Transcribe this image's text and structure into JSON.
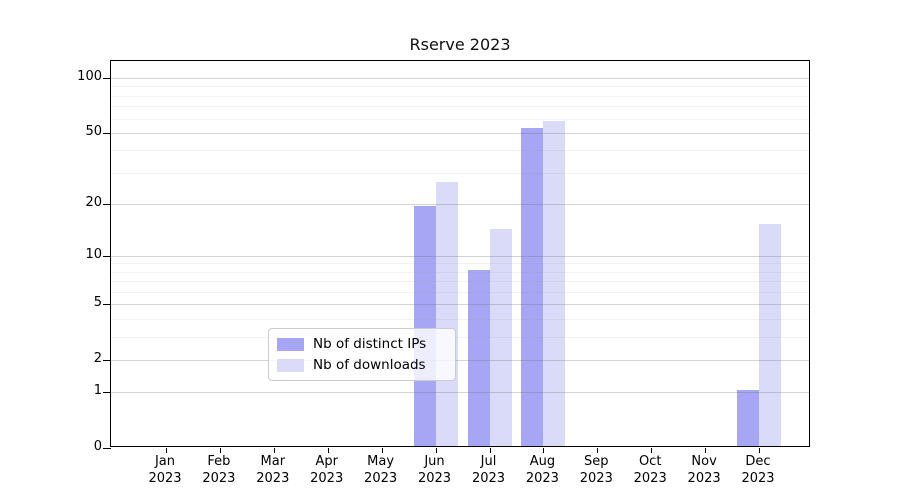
{
  "title": "Rserve 2023",
  "chart_data": {
    "type": "bar",
    "title": "Rserve 2023",
    "xlabel": "",
    "ylabel": "",
    "scale": "log1p",
    "grid": "horizontal",
    "legend_position": "bottom-center-inside",
    "ylim": [
      0,
      124
    ],
    "yticks": [
      0,
      1,
      2,
      5,
      10,
      20,
      50,
      100
    ],
    "yticks_minor": [
      3,
      4,
      6,
      7,
      8,
      9,
      30,
      40,
      60,
      70,
      80,
      90
    ],
    "categories": [
      "Jan 2023",
      "Feb 2023",
      "Mar 2023",
      "Apr 2023",
      "May 2023",
      "Jun 2023",
      "Jul 2023",
      "Aug 2023",
      "Sep 2023",
      "Oct 2023",
      "Nov 2023",
      "Dec 2023"
    ],
    "month_labels": [
      "Jan",
      "Feb",
      "Mar",
      "Apr",
      "May",
      "Jun",
      "Jul",
      "Aug",
      "Sep",
      "Oct",
      "Nov",
      "Dec"
    ],
    "year_label": "2023",
    "series": [
      {
        "name": "Nb of distinct IPs",
        "color": "#a6a6f4",
        "values": [
          0,
          0,
          0,
          0,
          0,
          19,
          8,
          52,
          0,
          0,
          0,
          1
        ]
      },
      {
        "name": "Nb of downloads",
        "color": "#dadaf9",
        "values": [
          0,
          0,
          0,
          0,
          0,
          26,
          14,
          57,
          0,
          0,
          0,
          15
        ]
      }
    ]
  }
}
